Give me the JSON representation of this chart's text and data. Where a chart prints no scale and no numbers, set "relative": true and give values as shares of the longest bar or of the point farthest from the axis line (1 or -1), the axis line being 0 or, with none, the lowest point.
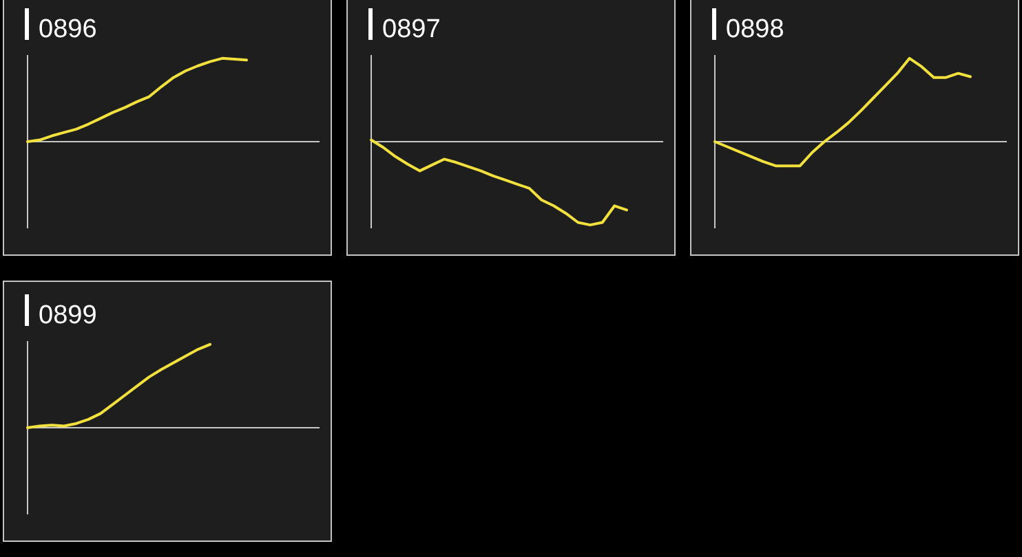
{
  "chart_data": [
    {
      "type": "line",
      "title": "0896",
      "relative": true,
      "categories": [
        null,
        null,
        null,
        null,
        null,
        null,
        null,
        null,
        null,
        null,
        null,
        null,
        null,
        null,
        null,
        null,
        null,
        null,
        null,
        null,
        null,
        null,
        null,
        null,
        null
      ],
      "series": [
        {
          "color": "#f2e03c",
          "values": [
            0,
            0.02,
            0.07,
            0.11,
            0.15,
            0.21,
            0.28,
            0.35,
            0.41,
            0.48,
            0.54,
            0.66,
            0.77,
            0.85,
            0.91,
            0.96,
            1,
            0.99,
            0.98,
            null,
            null,
            null,
            null,
            null,
            null
          ]
        }
      ]
    },
    {
      "type": "line",
      "title": "0897",
      "relative": true,
      "categories": [
        null,
        null,
        null,
        null,
        null,
        null,
        null,
        null,
        null,
        null,
        null,
        null,
        null,
        null,
        null,
        null,
        null,
        null,
        null,
        null,
        null,
        null,
        null,
        null,
        null
      ],
      "series": [
        {
          "color": "#f2e03c",
          "values": [
            0.02,
            -0.07,
            -0.18,
            -0.27,
            -0.35,
            -0.28,
            -0.21,
            -0.25,
            -0.3,
            -0.35,
            -0.41,
            -0.46,
            -0.51,
            -0.56,
            -0.7,
            -0.77,
            -0.86,
            -0.97,
            -1,
            -0.97,
            -0.77,
            -0.82,
            null,
            null,
            null
          ]
        }
      ]
    },
    {
      "type": "line",
      "title": "0898",
      "relative": true,
      "categories": [
        null,
        null,
        null,
        null,
        null,
        null,
        null,
        null,
        null,
        null,
        null,
        null,
        null,
        null,
        null,
        null,
        null,
        null,
        null,
        null,
        null,
        null,
        null,
        null,
        null
      ],
      "series": [
        {
          "color": "#f2e03c",
          "values": [
            0,
            -0.06,
            -0.12,
            -0.18,
            -0.24,
            -0.29,
            -0.29,
            -0.29,
            -0.13,
            0,
            0.11,
            0.23,
            0.37,
            0.52,
            0.67,
            0.82,
            1,
            0.9,
            0.77,
            0.77,
            0.82,
            0.78,
            null,
            null,
            null
          ]
        }
      ]
    },
    {
      "type": "line",
      "title": "0899",
      "relative": true,
      "categories": [
        null,
        null,
        null,
        null,
        null,
        null,
        null,
        null,
        null,
        null,
        null,
        null,
        null,
        null,
        null,
        null,
        null,
        null,
        null,
        null,
        null,
        null,
        null,
        null,
        null
      ],
      "series": [
        {
          "color": "#f2e03c",
          "values": [
            0,
            0.02,
            0.03,
            0.02,
            0.05,
            0.1,
            0.17,
            0.28,
            0.39,
            0.5,
            0.61,
            0.7,
            0.78,
            0.86,
            0.94,
            1,
            null,
            null,
            null,
            null,
            null,
            null,
            null,
            null,
            null
          ]
        }
      ]
    }
  ]
}
